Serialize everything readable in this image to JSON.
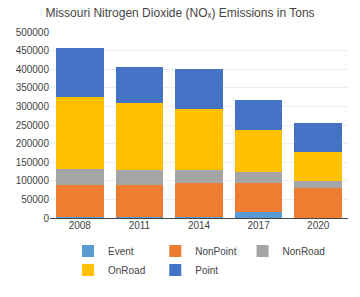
{
  "chart_data": {
    "type": "bar",
    "title": "Missouri Nitrogen Dioxide (NOₓ) Emissions in Tons",
    "categories": [
      "2008",
      "2011",
      "2014",
      "2017",
      "2020"
    ],
    "series": [
      {
        "name": "Event",
        "color": "#5b9bd5",
        "values": [
          2000,
          2000,
          2000,
          15000,
          0
        ]
      },
      {
        "name": "NonPoint",
        "color": "#ed7d31",
        "values": [
          88000,
          88000,
          93000,
          80000,
          82000
        ]
      },
      {
        "name": "NonRoad",
        "color": "#a5a5a5",
        "values": [
          42000,
          40000,
          35000,
          30000,
          18000
        ]
      },
      {
        "name": "OnRoad",
        "color": "#ffc000",
        "values": [
          192000,
          178000,
          163000,
          112000,
          77000
        ]
      },
      {
        "name": "Point",
        "color": "#4472c4",
        "values": [
          132000,
          97000,
          107000,
          80000,
          78000
        ]
      }
    ],
    "stacked": true,
    "ylim": [
      0,
      500000
    ],
    "yticks": [
      0,
      50000,
      100000,
      150000,
      200000,
      250000,
      300000,
      350000,
      400000,
      450000,
      500000
    ],
    "grid": true,
    "legend": "bottom"
  }
}
